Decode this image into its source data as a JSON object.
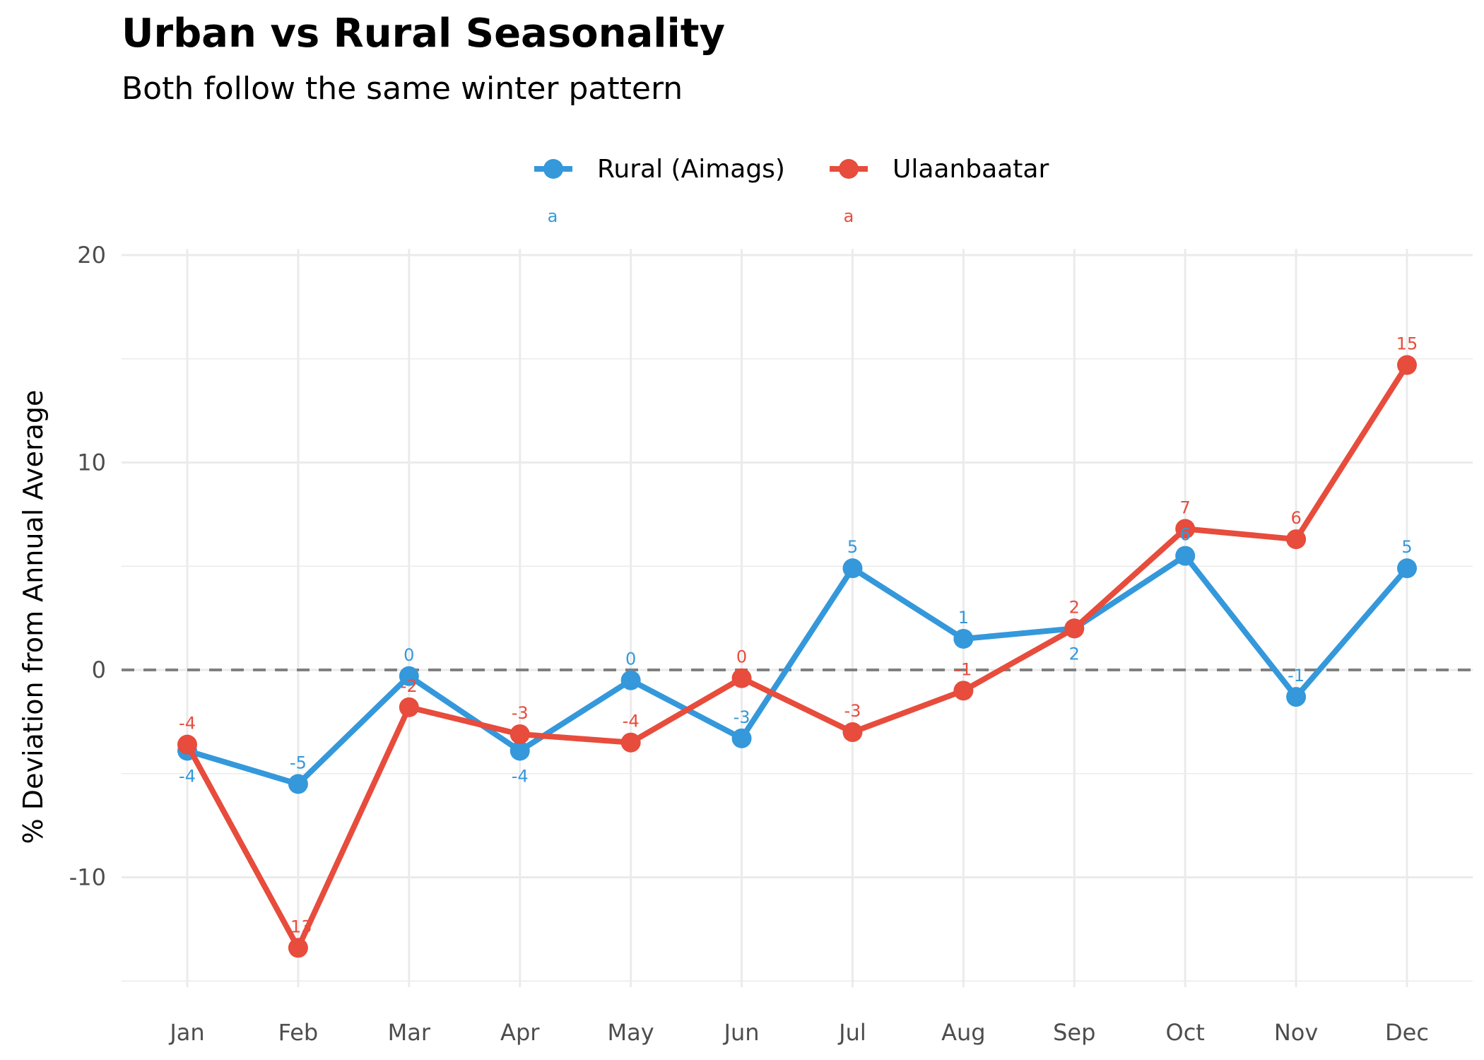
{
  "chart_data": {
    "type": "line",
    "title": "Urban vs Rural Seasonality",
    "subtitle": "Both follow the same winter pattern",
    "xlabel": "",
    "ylabel": "% Deviation from Annual Average",
    "categories": [
      "Jan",
      "Feb",
      "Mar",
      "Apr",
      "May",
      "Jun",
      "Jul",
      "Aug",
      "Sep",
      "Oct",
      "Nov",
      "Dec"
    ],
    "ylim": [
      -15.3,
      20.3
    ],
    "yticks": [
      -10,
      0,
      10,
      20
    ],
    "ytick_labels": [
      "-10",
      "0",
      "10",
      "20"
    ],
    "minor_yticks": [
      -15,
      -5,
      5,
      15
    ],
    "grid": true,
    "legend_position": "top",
    "reference_line": {
      "y": 0,
      "style": "dashed",
      "color": "#808080"
    },
    "series": [
      {
        "name": "Rural (Aimags)",
        "color": "#3498db",
        "values": [
          -3.9,
          -5.5,
          -0.3,
          -3.9,
          -0.5,
          -3.3,
          4.9,
          1.5,
          2.0,
          5.5,
          -1.3,
          4.9
        ],
        "labels": [
          "-4",
          "-5",
          "0",
          "-4",
          "0",
          "-3",
          "5",
          "1",
          "2",
          "6",
          "-1",
          "5"
        ],
        "stray_annotation": "a"
      },
      {
        "name": "Ulaanbaatar",
        "color": "#e74c3c",
        "values": [
          -3.6,
          -13.4,
          -1.8,
          -3.1,
          -3.5,
          -0.4,
          -3.0,
          -1.0,
          2.0,
          6.8,
          6.3,
          14.7
        ],
        "labels": [
          "-4",
          "-13",
          "-2",
          "-3",
          "-4",
          "0",
          "-3",
          "-1",
          "2",
          "7",
          "6",
          "15"
        ],
        "stray_annotation": "a"
      }
    ]
  }
}
